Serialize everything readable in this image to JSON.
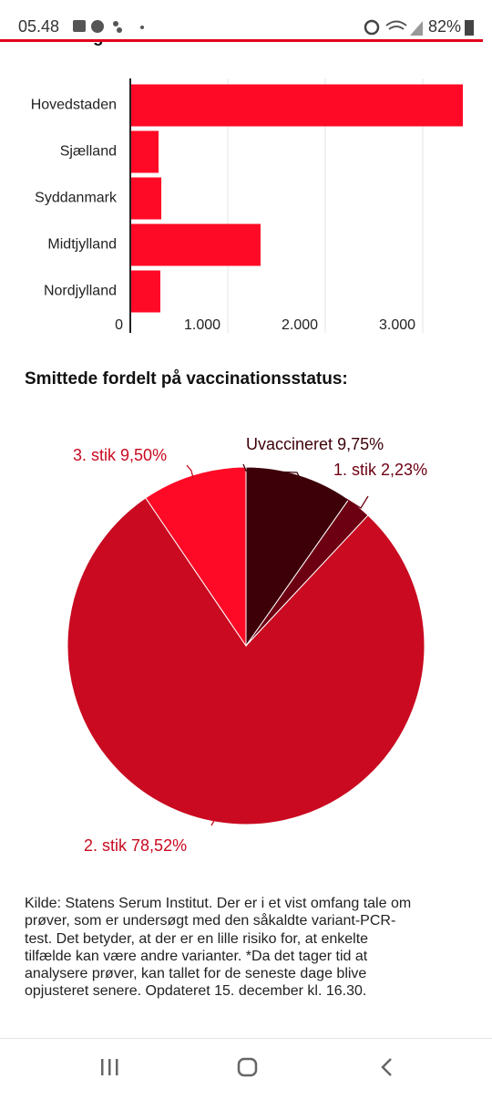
{
  "status_bar": {
    "time": "05.48",
    "battery": "82%"
  },
  "chart_data": [
    {
      "type": "bar",
      "orientation": "horizontal",
      "title": "Fordeling af tilfælde i landet:",
      "categories": [
        "Hovedstaden",
        "Sjælland",
        "Syddanmark",
        "Midtjylland",
        "Nordjylland"
      ],
      "values": [
        3411,
        290,
        318,
        1336,
        308
      ],
      "color": "#ff0a26",
      "xlim": [
        0,
        3420
      ],
      "xticks": [
        0,
        {
          "value": 1000,
          "label": "1.000"
        },
        {
          "value": 2000,
          "label": "2.000"
        },
        {
          "value": 3000,
          "label": "3.000"
        }
      ],
      "grid": true
    },
    {
      "type": "pie",
      "title": "Smittede fordelt på vaccinationsstatus:",
      "categories": [
        "Uvaccineret",
        "1. stik",
        "2. stik",
        "3. stik"
      ],
      "values": [
        9.75,
        2.23,
        78.52,
        9.5
      ],
      "value_labels": [
        "9,75%",
        "2,23%",
        "78,52%",
        "9,50%"
      ],
      "colors": [
        "#3d0009",
        "#6c0012",
        "#c90a20",
        "#ff0a26"
      ],
      "label_colors": [
        "#3d0009",
        "#6c0012",
        "#c90a20",
        "#c90a20"
      ]
    }
  ],
  "footer": {
    "lines": [
      "Kilde: Statens Serum Institut. Der er i et vist omfang tale om",
      "prøver, som er undersøgt med den såkaldte variant-PCR-",
      "test. Det betyder, at der er en lille risiko for, at enkelte",
      "tilfælde kan være andre varianter. *Da det tager tid at",
      "analysere prøver, kan tallet for de seneste dage blive",
      "opjusteret senere. Opdateret 15. december kl. 16.30."
    ]
  }
}
